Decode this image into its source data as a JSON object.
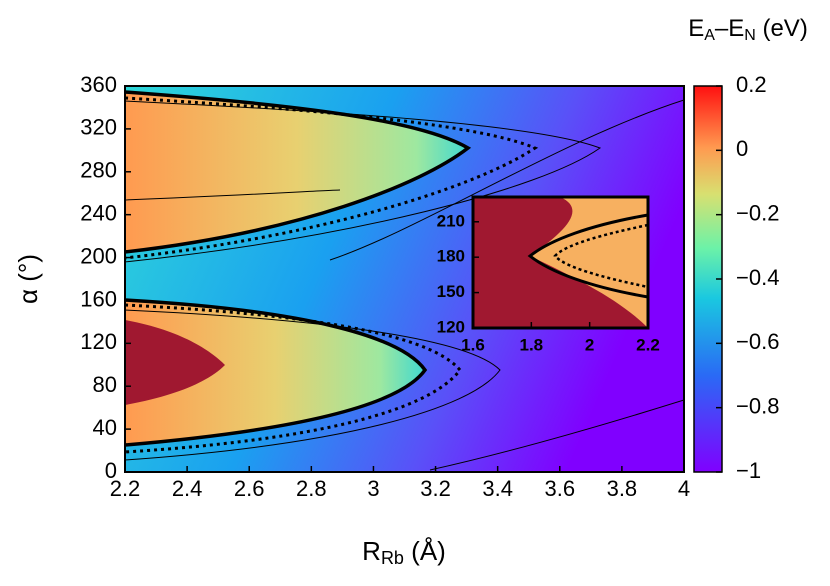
{
  "chart_data": {
    "type": "heatmap",
    "x_label": {
      "main": "R",
      "sub": "Rb",
      "rest": " (Å)"
    },
    "y_label": "α (°)",
    "xlim": [
      2.2,
      4
    ],
    "xticks": [
      2.2,
      2.4,
      2.6,
      2.8,
      3,
      3.2,
      3.4,
      3.6,
      3.8,
      4
    ],
    "ylim": [
      0,
      360
    ],
    "yticks": [
      0,
      40,
      80,
      120,
      160,
      200,
      240,
      280,
      320,
      360
    ],
    "colorbar": {
      "label": {
        "e1": "E",
        "s1": "A",
        "e2": "–E",
        "s2": "N",
        "unit": " (eV)"
      },
      "lim": [
        -1,
        0.2
      ],
      "ticks": [
        {
          "value": -1,
          "label": "−1"
        },
        {
          "value": -0.8,
          "label": "−0.8"
        },
        {
          "value": -0.6,
          "label": "−0.6"
        },
        {
          "value": -0.4,
          "label": "−0.4"
        },
        {
          "value": -0.2,
          "label": "−0.2"
        },
        0,
        0.2
      ]
    },
    "inset": {
      "xlim": [
        1.6,
        2.2
      ],
      "xticks": [
        1.6,
        1.8,
        2,
        2.2
      ],
      "ylim": [
        120,
        231
      ],
      "yticks": [
        120,
        150,
        180,
        210
      ]
    }
  }
}
